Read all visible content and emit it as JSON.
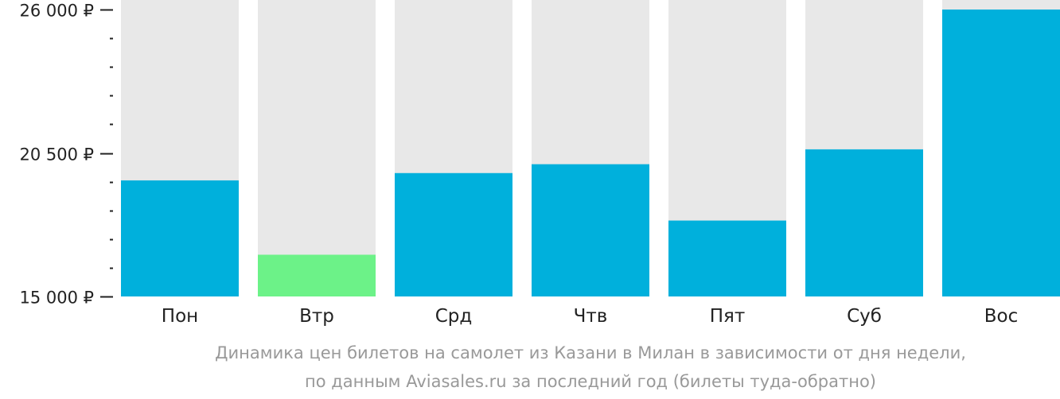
{
  "chart_data": {
    "type": "bar",
    "categories": [
      "Пон",
      "Втр",
      "Срд",
      "Чтв",
      "Пят",
      "Суб",
      "Вос"
    ],
    "values": [
      19450,
      16600,
      19730,
      20070,
      17910,
      20640,
      26000
    ],
    "ylim": [
      15000,
      26000
    ],
    "y_tick_labels": [
      {
        "value": 26000,
        "label": "26 000 ₽"
      },
      {
        "value": 20500,
        "label": "20 500 ₽"
      },
      {
        "value": 15000,
        "label": "15 000 ₽"
      }
    ],
    "minor_tick_step": 1100,
    "colors": {
      "bar": "#00b0dc",
      "min_bar": "#6cf288",
      "background_bar": "#e8e8e8",
      "axis": "#222222"
    },
    "highlight_index": 1,
    "caption_lines": [
      "Динамика цен билетов на самолет из Казани в Милан в зависимости от дня недели,",
      "по данным Aviasales.ru за последний год (билеты туда-обратно)"
    ]
  }
}
